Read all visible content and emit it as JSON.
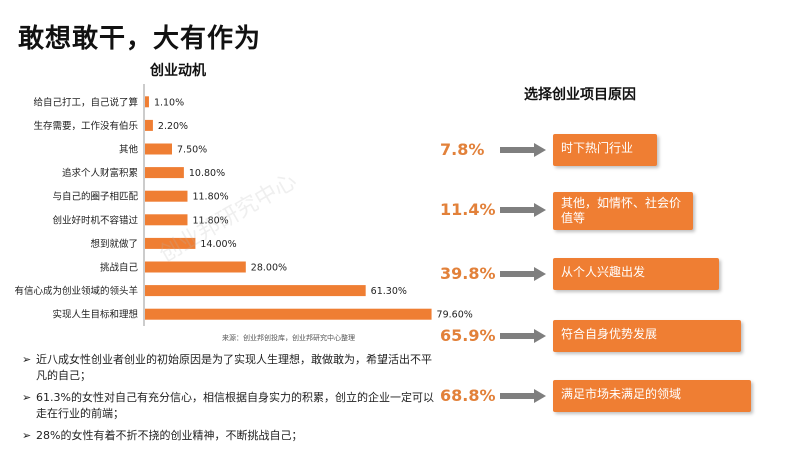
{
  "headline": "敢想敢干，大有作为",
  "source_note": "来源：创业邦创投库，创业邦研究中心整理",
  "watermark": "创业邦研究中心",
  "chart_data": {
    "type": "bar",
    "orientation": "horizontal",
    "title": "创业动机",
    "categories": [
      "给自己打工，自己说了算",
      "生存需要，工作没有伯乐",
      "其他",
      "追求个人财富积累",
      "与自己的圈子相匹配",
      "创业好时机不容错过",
      "想到就做了",
      "挑战自己",
      "有信心成为创业领域的领头羊",
      "实现人生目标和理想"
    ],
    "values": [
      1.1,
      2.2,
      7.5,
      10.8,
      11.8,
      11.8,
      14.0,
      28.0,
      61.3,
      79.6
    ],
    "labels": [
      "1.10%",
      "2.20%",
      "7.50%",
      "10.80%",
      "11.80%",
      "11.80%",
      "14.00%",
      "28.00%",
      "61.30%",
      "79.60%"
    ],
    "xlim": [
      0,
      100
    ],
    "color": "#ef7e33",
    "grid": false
  },
  "reasons": {
    "title": "选择创业项目原因",
    "items": [
      {
        "pct": "7.8%",
        "text": "时下热门行业"
      },
      {
        "pct": "11.4%",
        "text": "其他，如情怀、社会价值等"
      },
      {
        "pct": "39.8%",
        "text": "从个人兴趣出发"
      },
      {
        "pct": "65.9%",
        "text": "符合自身优势发展"
      },
      {
        "pct": "68.8%",
        "text": "满足市场未满足的领域"
      }
    ]
  },
  "bullets": [
    "近八成女性创业者创业的初始原因是为了实现人生理想，敢做敢为，希望活出不平凡的自己；",
    "61.3%的女性对自己有充分信心，相信根据自身实力的积累，创立的企业一定可以走在行业的前端；",
    "28%的女性有着不折不挠的创业精神，不断挑战自己；"
  ],
  "bullet_mark": "➢",
  "colors": {
    "accent": "#ef7e33",
    "pct_text": "#e2813a",
    "arrow": "#7f7f7f"
  }
}
